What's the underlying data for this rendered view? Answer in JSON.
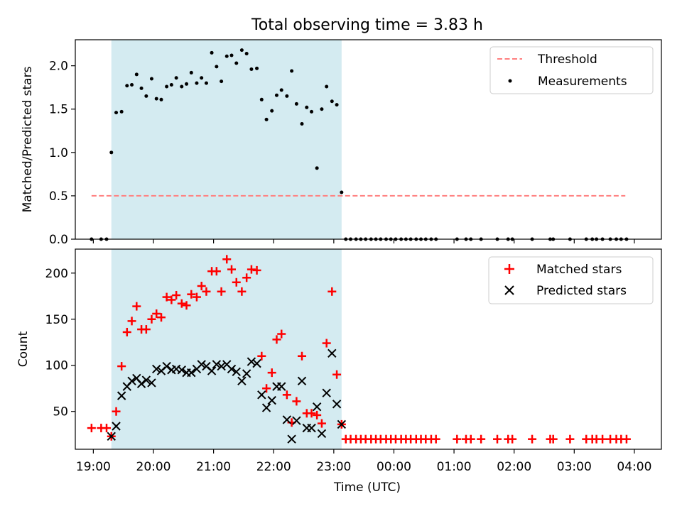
{
  "title": "Total observing time = 3.83 h",
  "colors": {
    "shade": "#d4ebf1",
    "threshold": "#ff7f7f",
    "measurement": "#000000",
    "matched": "#ff0000",
    "predicted": "#000000"
  },
  "chart_data": [
    {
      "type": "scatter",
      "ylabel": "Matched/Predicted stars",
      "ylim": [
        0,
        2.3
      ],
      "xlim": [
        18.7,
        28.45
      ],
      "yticks": [
        0.0,
        0.5,
        1.0,
        1.5,
        2.0
      ],
      "ytick_labels": [
        "0.0",
        "0.5",
        "1.0",
        "1.5",
        "2.0"
      ],
      "shaded_span": [
        19.3,
        23.13
      ],
      "legend": {
        "placement": "top-right",
        "entries": [
          "Threshold",
          "Measurements"
        ]
      },
      "threshold": {
        "name": "Threshold",
        "x": [
          18.97,
          27.85
        ],
        "y": 0.5
      },
      "series": [
        {
          "name": "Measurements",
          "points": [
            [
              18.97,
              0
            ],
            [
              19.13,
              0
            ],
            [
              19.22,
              0
            ],
            [
              19.3,
              1.0
            ],
            [
              19.38,
              1.46
            ],
            [
              19.47,
              1.47
            ],
            [
              19.56,
              1.77
            ],
            [
              19.64,
              1.78
            ],
            [
              19.72,
              1.9
            ],
            [
              19.8,
              1.74
            ],
            [
              19.88,
              1.65
            ],
            [
              19.97,
              1.85
            ],
            [
              20.05,
              1.62
            ],
            [
              20.13,
              1.61
            ],
            [
              20.22,
              1.76
            ],
            [
              20.3,
              1.78
            ],
            [
              20.38,
              1.86
            ],
            [
              20.47,
              1.76
            ],
            [
              20.55,
              1.79
            ],
            [
              20.63,
              1.92
            ],
            [
              20.72,
              1.8
            ],
            [
              20.8,
              1.86
            ],
            [
              20.88,
              1.8
            ],
            [
              20.97,
              2.15
            ],
            [
              21.05,
              1.99
            ],
            [
              21.13,
              1.82
            ],
            [
              21.22,
              2.11
            ],
            [
              21.3,
              2.12
            ],
            [
              21.38,
              2.03
            ],
            [
              21.47,
              2.18
            ],
            [
              21.55,
              2.14
            ],
            [
              21.63,
              1.96
            ],
            [
              21.72,
              1.97
            ],
            [
              21.8,
              1.61
            ],
            [
              21.88,
              1.38
            ],
            [
              21.97,
              1.48
            ],
            [
              22.05,
              1.66
            ],
            [
              22.13,
              1.72
            ],
            [
              22.22,
              1.65
            ],
            [
              22.3,
              1.94
            ],
            [
              22.38,
              1.56
            ],
            [
              22.47,
              1.33
            ],
            [
              22.55,
              1.52
            ],
            [
              22.63,
              1.47
            ],
            [
              22.72,
              0.82
            ],
            [
              22.8,
              1.5
            ],
            [
              22.88,
              1.76
            ],
            [
              22.97,
              1.59
            ],
            [
              23.05,
              1.55
            ],
            [
              23.13,
              0.54
            ],
            [
              23.2,
              0
            ],
            [
              23.28,
              0
            ],
            [
              23.37,
              0
            ],
            [
              23.45,
              0
            ],
            [
              23.53,
              0
            ],
            [
              23.62,
              0
            ],
            [
              23.7,
              0
            ],
            [
              23.78,
              0
            ],
            [
              23.87,
              0
            ],
            [
              23.95,
              0
            ],
            [
              24.03,
              0
            ],
            [
              24.12,
              0
            ],
            [
              24.2,
              0
            ],
            [
              24.28,
              0
            ],
            [
              24.37,
              0
            ],
            [
              24.45,
              0
            ],
            [
              24.53,
              0
            ],
            [
              24.62,
              0
            ],
            [
              24.7,
              0
            ],
            [
              25.05,
              0
            ],
            [
              25.2,
              0
            ],
            [
              25.28,
              0
            ],
            [
              25.45,
              0
            ],
            [
              25.72,
              0
            ],
            [
              25.9,
              0
            ],
            [
              25.97,
              0
            ],
            [
              26.3,
              0
            ],
            [
              26.6,
              0
            ],
            [
              26.65,
              0
            ],
            [
              26.93,
              0
            ],
            [
              27.2,
              0
            ],
            [
              27.3,
              0
            ],
            [
              27.37,
              0
            ],
            [
              27.47,
              0
            ],
            [
              27.6,
              0
            ],
            [
              27.7,
              0
            ],
            [
              27.78,
              0
            ],
            [
              27.87,
              0
            ]
          ]
        }
      ]
    },
    {
      "type": "scatter",
      "ylabel": "Count",
      "xlabel": "Time (UTC)",
      "ylim": [
        9,
        226
      ],
      "xlim": [
        18.7,
        28.45
      ],
      "yticks": [
        50,
        100,
        150,
        200
      ],
      "ytick_labels": [
        "50",
        "100",
        "150",
        "200"
      ],
      "xticks": [
        19,
        20,
        21,
        22,
        23,
        24,
        25,
        26,
        27,
        28
      ],
      "xtick_labels": [
        "19:00",
        "20:00",
        "21:00",
        "22:00",
        "23:00",
        "00:00",
        "01:00",
        "02:00",
        "03:00",
        "04:00"
      ],
      "shaded_span": [
        19.3,
        23.13
      ],
      "legend": {
        "placement": "top-right",
        "entries": [
          "Matched stars",
          "Predicted stars"
        ]
      },
      "series": [
        {
          "name": "Matched stars",
          "marker": "plus",
          "points": [
            [
              18.97,
              32
            ],
            [
              19.13,
              32
            ],
            [
              19.22,
              32
            ],
            [
              19.3,
              23
            ],
            [
              19.38,
              50
            ],
            [
              19.47,
              99
            ],
            [
              19.56,
              136
            ],
            [
              19.64,
              148
            ],
            [
              19.72,
              164
            ],
            [
              19.8,
              139
            ],
            [
              19.88,
              139
            ],
            [
              19.97,
              150
            ],
            [
              20.05,
              156
            ],
            [
              20.13,
              152
            ],
            [
              20.22,
              174
            ],
            [
              20.3,
              171
            ],
            [
              20.38,
              176
            ],
            [
              20.47,
              167
            ],
            [
              20.55,
              165
            ],
            [
              20.63,
              177
            ],
            [
              20.72,
              174
            ],
            [
              20.8,
              186
            ],
            [
              20.88,
              180
            ],
            [
              20.97,
              202
            ],
            [
              21.05,
              202
            ],
            [
              21.13,
              180
            ],
            [
              21.22,
              215
            ],
            [
              21.3,
              204
            ],
            [
              21.38,
              190
            ],
            [
              21.47,
              180
            ],
            [
              21.55,
              195
            ],
            [
              21.63,
              204
            ],
            [
              21.72,
              203
            ],
            [
              21.8,
              110
            ],
            [
              21.88,
              75
            ],
            [
              21.97,
              92
            ],
            [
              22.05,
              128
            ],
            [
              22.13,
              134
            ],
            [
              22.22,
              68
            ],
            [
              22.3,
              38
            ],
            [
              22.38,
              61
            ],
            [
              22.47,
              110
            ],
            [
              22.55,
              48
            ],
            [
              22.63,
              48
            ],
            [
              22.72,
              46
            ],
            [
              22.8,
              37
            ],
            [
              22.88,
              124
            ],
            [
              22.97,
              180
            ],
            [
              23.05,
              90
            ],
            [
              23.13,
              36
            ],
            [
              23.2,
              20
            ],
            [
              23.28,
              20
            ],
            [
              23.37,
              20
            ],
            [
              23.45,
              20
            ],
            [
              23.53,
              20
            ],
            [
              23.62,
              20
            ],
            [
              23.7,
              20
            ],
            [
              23.78,
              20
            ],
            [
              23.87,
              20
            ],
            [
              23.95,
              20
            ],
            [
              24.03,
              20
            ],
            [
              24.12,
              20
            ],
            [
              24.2,
              20
            ],
            [
              24.28,
              20
            ],
            [
              24.37,
              20
            ],
            [
              24.45,
              20
            ],
            [
              24.53,
              20
            ],
            [
              24.62,
              20
            ],
            [
              24.7,
              20
            ],
            [
              25.05,
              20
            ],
            [
              25.2,
              20
            ],
            [
              25.28,
              20
            ],
            [
              25.45,
              20
            ],
            [
              25.72,
              20
            ],
            [
              25.9,
              20
            ],
            [
              25.97,
              20
            ],
            [
              26.3,
              20
            ],
            [
              26.6,
              20
            ],
            [
              26.65,
              20
            ],
            [
              26.93,
              20
            ],
            [
              27.2,
              20
            ],
            [
              27.3,
              20
            ],
            [
              27.37,
              20
            ],
            [
              27.47,
              20
            ],
            [
              27.6,
              20
            ],
            [
              27.7,
              20
            ],
            [
              27.78,
              20
            ],
            [
              27.87,
              20
            ]
          ]
        },
        {
          "name": "Predicted stars",
          "marker": "x",
          "points": [
            [
              19.3,
              23
            ],
            [
              19.38,
              34
            ],
            [
              19.47,
              67
            ],
            [
              19.56,
              77
            ],
            [
              19.64,
              83
            ],
            [
              19.72,
              86
            ],
            [
              19.8,
              80
            ],
            [
              19.88,
              84
            ],
            [
              19.97,
              81
            ],
            [
              20.05,
              96
            ],
            [
              20.13,
              94
            ],
            [
              20.22,
              99
            ],
            [
              20.3,
              95
            ],
            [
              20.38,
              96
            ],
            [
              20.47,
              95
            ],
            [
              20.55,
              92
            ],
            [
              20.63,
              92
            ],
            [
              20.72,
              96
            ],
            [
              20.8,
              101
            ],
            [
              20.88,
              99
            ],
            [
              20.97,
              94
            ],
            [
              21.05,
              101
            ],
            [
              21.13,
              99
            ],
            [
              21.22,
              101
            ],
            [
              21.3,
              96
            ],
            [
              21.38,
              93
            ],
            [
              21.47,
              83
            ],
            [
              21.55,
              91
            ],
            [
              21.63,
              104
            ],
            [
              21.72,
              102
            ],
            [
              21.8,
              68
            ],
            [
              21.88,
              54
            ],
            [
              21.97,
              62
            ],
            [
              22.05,
              77
            ],
            [
              22.13,
              77
            ],
            [
              22.22,
              41
            ],
            [
              22.3,
              20
            ],
            [
              22.38,
              40
            ],
            [
              22.47,
              83
            ],
            [
              22.55,
              32
            ],
            [
              22.63,
              32
            ],
            [
              22.72,
              55
            ],
            [
              22.8,
              26
            ],
            [
              22.88,
              70
            ],
            [
              22.97,
              113
            ],
            [
              23.05,
              58
            ],
            [
              23.13,
              36
            ]
          ]
        }
      ]
    }
  ]
}
